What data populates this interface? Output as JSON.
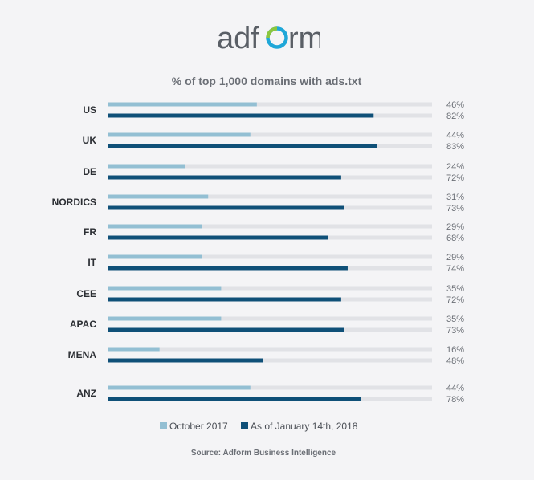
{
  "brand": {
    "logo_text_pre": "adf",
    "logo_text_post": "rm",
    "logo_color": "#5a5f66",
    "logo_ring_colors": [
      "#8cc63f",
      "#1fa7d8"
    ]
  },
  "chart_data": {
    "type": "bar",
    "orientation": "horizontal",
    "title": "% of top 1,000 domains with ads.txt",
    "categories": [
      "US",
      "UK",
      "DE",
      "NORDICS",
      "FR",
      "IT",
      "CEE",
      "APAC",
      "MENA",
      "ANZ"
    ],
    "series": [
      {
        "name": "October 2017",
        "color": "#93bfd3",
        "values": [
          46,
          44,
          24,
          31,
          29,
          29,
          35,
          35,
          16,
          44
        ],
        "labels": [
          "46%",
          "44%",
          "24%",
          "31%",
          "29%",
          "29%",
          "35%",
          "35%",
          "16%",
          "44%"
        ]
      },
      {
        "name": "As of January 14th, 2018",
        "color": "#0f5078",
        "values": [
          82,
          83,
          72,
          73,
          68,
          74,
          72,
          73,
          48,
          78
        ],
        "labels": [
          "82%",
          "83%",
          "72%",
          "73%",
          "68%",
          "74%",
          "72%",
          "73%",
          "48%",
          "78%"
        ]
      }
    ],
    "track_color": "#e1e2e6",
    "xlim": [
      0,
      100
    ],
    "grid": false,
    "legend_position": "bottom"
  },
  "source": "Source: Adform Business Intelligence"
}
